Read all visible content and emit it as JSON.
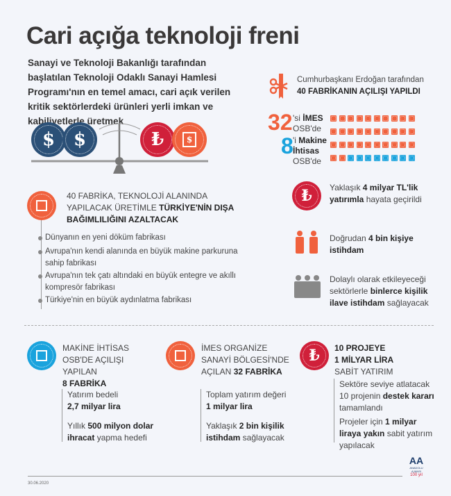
{
  "title": "Cari açığa teknoloji freni",
  "intro": "Sanayi ve Teknoloji Bakanlığı tarafından başlatılan Teknoloji Odaklı Sanayi Hamlesi Programı'nın en temel amacı, cari açık verilen kritik sektörlerdeki ürünleri yerli imkan ve kabiliyetlerle üretmek",
  "opening": {
    "line1": "Cumhurbaşkanı Erdoğan tarafından",
    "line2": "40 FABRİKANIN AÇILIŞI YAPILDI"
  },
  "factory_split": {
    "imes_count": "32",
    "imes_suffix": "'si ",
    "imes_bold": "İMES",
    "imes_rest": "OSB'de",
    "makine_count": "8",
    "makine_suffix": "'i ",
    "makine_bold": "Makine İhtisas",
    "makine_rest": "OSB'de",
    "colors": {
      "imes": "#f0613d",
      "makine": "#1aa3dd"
    }
  },
  "scale": {
    "left_coins": [
      "$",
      "$"
    ],
    "right_coins": [
      "₺",
      "$"
    ]
  },
  "main_claim": {
    "normal1": "40 FABRİKA, TEKNOLOJİ ALANINDA YAPILACAK ÜRETİMLE ",
    "bold": "TÜRKİYE'NİN DIŞA BAĞIMLILIĞINI AZALTACAK"
  },
  "bullets": [
    "Dünyanın en yeni döküm fabrikası",
    "Avrupa'nın kendi alanında en büyük makine parkuruna sahip fabrikası",
    "Avrupa'nın tek çatı altındaki en büyük entegre ve akıllı kompresör fabrikası",
    "Türkiye'nin en büyük aydınlatma fabrikası"
  ],
  "stats": {
    "investment": {
      "pre": "Yaklaşık ",
      "bold": "4 milyar TL'lik yatırımla",
      "post": " hayata geçirildi"
    },
    "direct": {
      "pre": "Doğrudan ",
      "bold": "4 bin kişiye istihdam",
      "post": ""
    },
    "indirect": {
      "pre": "Dolaylı olarak etkileyeceği sektörlerle ",
      "bold": "binlerce kişilik ilave istihdam",
      "post": " sağlayacak"
    }
  },
  "columns": {
    "makine": {
      "head_normal": "MAKİNE İHTİSAS OSB'DE AÇILIŞI YAPILAN",
      "head_bold": "8 FABRİKA",
      "p1_pre": "Yatırım bedeli",
      "p1_bold": "2,7 milyar lira",
      "p2_pre": "Yıllık ",
      "p2_bold1": "500 milyon dolar",
      "p2_bold2": "ihracat",
      "p2_post": " yapma hedefi"
    },
    "imes": {
      "head_normal": "İMES ORGANİZE SANAYİ BÖLGESİ'NDE AÇILAN ",
      "head_bold": "32 FABRİKA",
      "p1_pre": "Toplam yatırım değeri",
      "p1_bold": "1 milyar lira",
      "p2_pre": "Yaklaşık ",
      "p2_bold": "2 bin kişilik istihdam",
      "p2_post": " sağlayacak"
    },
    "projects": {
      "head_bold1": "10 PROJEYE",
      "head_bold2": "1 MİLYAR LİRA",
      "head_normal": "SABİT YATIRIM",
      "p1_pre": "Sektöre seviye atlatacak 10 projenin ",
      "p1_bold": "destek kararı",
      "p1_post": " tamamlandı",
      "p2_pre": "Projeler için ",
      "p2_bold": "1 milyar liraya yakın",
      "p2_post": " sabit yatırım yapılacak"
    }
  },
  "footer": {
    "date": "30.06.2020",
    "logo_text": "AA",
    "logo_sub": "ANADOLU AJANSI",
    "logo_100": "100 yıl"
  }
}
